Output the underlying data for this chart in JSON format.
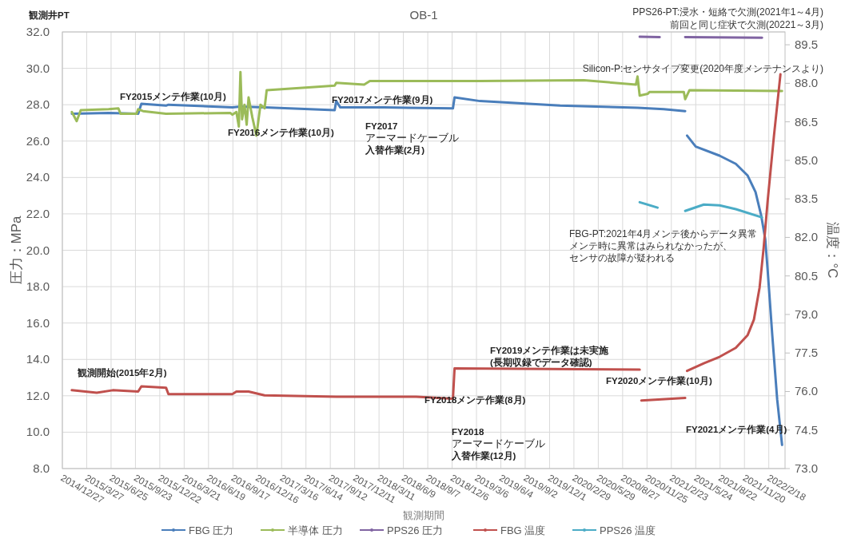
{
  "chart_data": {
    "type": "line",
    "title": "OB-1",
    "xlabel": "観測期間",
    "ylabel": "圧力：MPa",
    "y2label": "温度：°C",
    "xlim": [
      "2014-12-27",
      "2022-04-19"
    ],
    "xticks": [
      {
        "value": "2014-12-27",
        "label": "2014/12/27"
      },
      {
        "value": "2015-03-27",
        "label": "2015/3/27"
      },
      {
        "value": "2015-06-25",
        "label": "2015/6/25"
      },
      {
        "value": "2015-09-23",
        "label": "2015/9/23"
      },
      {
        "value": "2015-12-22",
        "label": "2015/12/22"
      },
      {
        "value": "2016-03-21",
        "label": "2016/3/21"
      },
      {
        "value": "2016-06-19",
        "label": "2016/6/19"
      },
      {
        "value": "2016-09-17",
        "label": "2016/9/17"
      },
      {
        "value": "2016-12-16",
        "label": "2016/12/16"
      },
      {
        "value": "2017-03-16",
        "label": "2017/3/16"
      },
      {
        "value": "2017-06-14",
        "label": "2017/6/14"
      },
      {
        "value": "2017-09-12",
        "label": "2017/9/12"
      },
      {
        "value": "2017-12-11",
        "label": "2017/12/11"
      },
      {
        "value": "2018-03-11",
        "label": "2018/3/11"
      },
      {
        "value": "2018-06-09",
        "label": "2018/6/9"
      },
      {
        "value": "2018-09-07",
        "label": "2018/9/7"
      },
      {
        "value": "2018-12-06",
        "label": "2018/12/6"
      },
      {
        "value": "2019-03-06",
        "label": "2019/3/6"
      },
      {
        "value": "2019-06-04",
        "label": "2019/6/4"
      },
      {
        "value": "2019-09-02",
        "label": "2019/9/2"
      },
      {
        "value": "2019-12-01",
        "label": "2019/12/1"
      },
      {
        "value": "2020-02-29",
        "label": "2020/2/29"
      },
      {
        "value": "2020-05-29",
        "label": "2020/5/29"
      },
      {
        "value": "2020-08-27",
        "label": "2020/8/27"
      },
      {
        "value": "2020-11-25",
        "label": "2020/11/25"
      },
      {
        "value": "2021-02-23",
        "label": "2021/2/23"
      },
      {
        "value": "2021-05-24",
        "label": "2021/5/24"
      },
      {
        "value": "2021-08-22",
        "label": "2021/8/22"
      },
      {
        "value": "2021-11-20",
        "label": "2021/11/20"
      },
      {
        "value": "2022-02-18",
        "label": "2022/2/18"
      }
    ],
    "ylim": [
      8,
      32
    ],
    "yticks": [
      {
        "value": 8,
        "label": "8.0"
      },
      {
        "value": 10,
        "label": "10.0"
      },
      {
        "value": 12,
        "label": "12.0"
      },
      {
        "value": 14,
        "label": "14.0"
      },
      {
        "value": 16,
        "label": "16.0"
      },
      {
        "value": 18,
        "label": "18.0"
      },
      {
        "value": 20,
        "label": "20.0"
      },
      {
        "value": 22,
        "label": "22.0"
      },
      {
        "value": 24,
        "label": "24.0"
      },
      {
        "value": 26,
        "label": "26.0"
      },
      {
        "value": 28,
        "label": "28.0"
      },
      {
        "value": 30,
        "label": "30.0"
      },
      {
        "value": 32,
        "label": "32.0"
      }
    ],
    "y2lim": [
      73,
      90
    ],
    "y2ticks": [
      {
        "value": 73,
        "label": "73.0"
      },
      74.5,
      {
        "value": 76,
        "label": "76.0"
      },
      77.5,
      {
        "value": 79,
        "label": "79.0"
      },
      80.5,
      {
        "value": 82,
        "label": "82.0"
      },
      83.5,
      {
        "value": 85,
        "label": "85.0"
      },
      86.5,
      {
        "value": 88,
        "label": "88.0"
      },
      89.5
    ],
    "grid": true,
    "legend": "bottom",
    "series": [
      {
        "name": "FBG 圧力",
        "color": "#4a7ebb",
        "x": [
          "2015-01-31",
          "2015-06-16",
          "2015-10-03",
          "2015-10-15",
          "2016-01-14",
          "2016-01-23",
          "2016-09-15",
          "2016-10-15",
          "2017-01-12",
          "2017-09-28",
          "2017-10-04",
          "2017-10-19",
          "2018-03-30",
          "2018-12-09",
          "2018-12-15",
          "2019-03-19",
          "2020-01-09",
          "2020-10-21",
          "2021-01-26",
          "2021-04-15"
        ],
        "values": [
          27.5,
          27.55,
          27.5,
          28.05,
          27.95,
          28.0,
          27.85,
          27.9,
          27.85,
          27.7,
          28.2,
          27.85,
          27.85,
          27.8,
          28.4,
          28.2,
          27.95,
          27.83,
          27.75,
          27.65
        ]
      },
      {
        "name": "半導体 圧力",
        "color": "#9bbb59",
        "x": [
          "2015-01-31",
          "2015-02-18",
          "2015-03-05",
          "2015-06-16",
          "2015-07-22",
          "2015-07-30",
          "2015-09-27",
          "2015-10-03",
          "2015-10-21",
          "2016-01-14",
          "2016-09-07",
          "2016-09-15",
          "2016-09-30",
          "2016-10-09",
          "2016-10-15",
          "2016-10-21",
          "2016-10-30",
          "2016-11-07",
          "2016-11-14",
          "2016-11-28",
          "2016-12-13",
          "2016-12-28",
          "2017-01-12",
          "2017-01-20",
          "2017-08-06",
          "2017-09-28",
          "2017-10-04",
          "2018-01-15",
          "2018-02-05",
          "2019-03-19",
          "2020-04-06",
          "2020-10-15",
          "2020-10-21",
          "2020-10-29",
          "2020-11-28",
          "2020-12-04",
          "2021-04-10",
          "2021-04-15",
          "2021-05-01",
          "2022-04-08"
        ],
        "values": [
          27.6,
          27.1,
          27.7,
          27.75,
          27.8,
          27.5,
          27.5,
          27.75,
          27.65,
          27.5,
          27.55,
          27.45,
          27.6,
          26.8,
          29.8,
          27.2,
          28.0,
          26.9,
          28.4,
          27.3,
          26.3,
          28.0,
          27.8,
          28.8,
          29.0,
          29.05,
          29.2,
          29.1,
          29.3,
          29.3,
          29.35,
          29.1,
          29.55,
          28.5,
          28.6,
          28.7,
          28.7,
          28.3,
          28.8,
          28.75
        ]
      },
      {
        "name": "PPS26 圧力",
        "color": "#8064a2",
        "x": [
          "2020-10-29",
          "2021-01-11"
        ],
        "values": [
          31.74,
          31.72
        ]
      },
      {
        "name": "FBG 温度",
        "color": "#c0504d",
        "axis": "y2",
        "x": [
          "2015-01-31",
          "2015-05-03",
          "2015-07-01",
          "2015-10-03",
          "2015-10-15",
          "2016-01-14",
          "2016-01-23",
          "2016-09-15",
          "2016-09-30",
          "2016-11-14",
          "2017-01-12",
          "2017-10-04",
          "2018-07-26",
          "2018-12-09",
          "2018-12-15",
          "2020-10-29"
        ],
        "values": [
          76.05,
          75.95,
          76.05,
          76.0,
          76.2,
          76.15,
          75.9,
          75.9,
          76.0,
          76.0,
          75.85,
          75.8,
          75.8,
          75.72,
          76.9,
          76.85
        ]
      },
      {
        "name": "PPS26 温度",
        "color": "#4bacc6",
        "axis": "y2",
        "x": [
          "2020-10-29",
          "2021-01-03"
        ],
        "values": [
          83.37,
          83.16
        ]
      },
      {
        "color": "#4a7ebb",
        "x": [
          "2021-04-22",
          "2021-05-24",
          "2021-08-20",
          "2021-10-19",
          "2021-12-02",
          "2021-12-31",
          "2022-01-21",
          "2022-02-05",
          "2022-02-14",
          "2022-03-03",
          "2022-03-21",
          "2022-04-08"
        ],
        "values": [
          26.3,
          25.7,
          25.2,
          24.75,
          24.1,
          23.2,
          21.9,
          20.6,
          18.85,
          15.3,
          11.8,
          9.3
        ]
      },
      {
        "color": "#8064a2",
        "x": [
          "2021-04-15",
          "2022-01-24"
        ],
        "values": [
          31.72,
          31.68
        ]
      },
      {
        "color": "#c0504d",
        "axis": "y2",
        "x": [
          "2020-11-04",
          "2021-04-15"
        ],
        "values": [
          75.65,
          75.75
        ]
      },
      {
        "color": "#c0504d",
        "axis": "y2",
        "x": [
          "2021-04-22",
          "2021-06-23",
          "2021-08-20",
          "2021-10-19",
          "2021-12-02",
          "2021-12-25",
          "2022-01-15",
          "2022-01-30",
          "2022-02-14",
          "2022-03-09",
          "2022-04-02"
        ],
        "values": [
          76.8,
          77.1,
          77.35,
          77.7,
          78.2,
          78.8,
          80.05,
          81.6,
          83.45,
          85.95,
          88.35
        ]
      },
      {
        "color": "#4bacc6",
        "axis": "y2",
        "x": [
          "2021-04-15",
          "2021-06-23",
          "2021-08-20",
          "2021-10-19",
          "2022-01-24"
        ],
        "values": [
          83.03,
          83.28,
          83.25,
          83.1,
          82.78
        ]
      }
    ],
    "annotations": [
      "観測井PT",
      "FY2015メンテ作業(10月)",
      "FY2016メンテ作業(10月)",
      "FY2017メンテ作業(9月)",
      "FY2017",
      "アーマードケーブル",
      "入替作業(2月)",
      "観測開始(2015年2月)",
      "FY2018メンテ作業(8月)",
      "FY2018",
      "アーマードケーブル",
      "入替作業(12月)",
      "FY2019メンテ作業は未実施",
      "(長期収録でデータ確認)",
      "FY2020メンテ作業(10月)",
      "FY2021メンテ作業(4月)",
      "FBG-PT:2021年4月メンテ後からデータ異常",
      "メンテ時に異常はみられなかったが、",
      "センサの故障が疑われる",
      "Silicon-P:センサタイプ変更(2020年度メンテナンスより)",
      "PPS26-PT:浸水・短絡で欠測(2021年1～4月)",
      "前回と同じ症状で欠測(20221～3月)"
    ]
  }
}
